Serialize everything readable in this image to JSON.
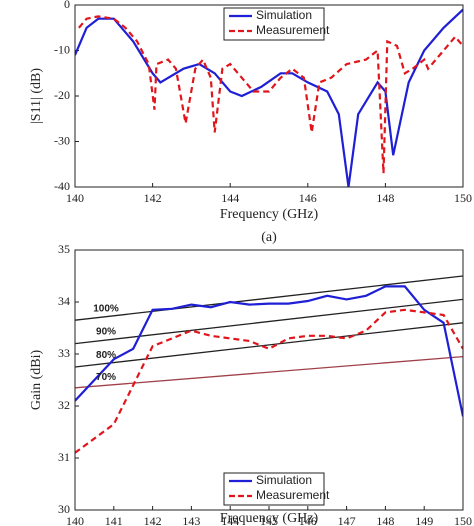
{
  "chart_data": [
    {
      "type": "line",
      "caption": "(a)",
      "xlabel": "Frequency (GHz)",
      "ylabel": "|S11| (dB)",
      "xlim": [
        140,
        150
      ],
      "xticks": [
        140,
        142,
        144,
        146,
        148,
        150
      ],
      "ylim": [
        -40,
        0
      ],
      "yticks": [
        -40,
        -30,
        -20,
        -10,
        0
      ],
      "legend": "upper center",
      "series": [
        {
          "name": "Simulation",
          "color": "#1f1fd6",
          "dash": false,
          "x": [
            140,
            140.3,
            140.6,
            141,
            141.5,
            142,
            142.2,
            142.8,
            143.2,
            143.6,
            144,
            144.3,
            144.8,
            145.3,
            145.6,
            146,
            146.5,
            146.8,
            147.05,
            147.3,
            147.8,
            148,
            148.2,
            148.6,
            149,
            149.5,
            150
          ],
          "values": [
            -11,
            -5,
            -3,
            -3,
            -8,
            -15,
            -17,
            -14,
            -13,
            -15,
            -19,
            -20,
            -18,
            -15,
            -15,
            -17,
            -19,
            -24,
            -40,
            -24,
            -17,
            -19,
            -33,
            -17,
            -10,
            -5,
            -1
          ]
        },
        {
          "name": "Measurement",
          "color": "#e0161c",
          "dash": true,
          "x": [
            140.1,
            140.3,
            140.6,
            141,
            141.3,
            141.6,
            141.9,
            142.05,
            142.1,
            142.4,
            142.6,
            142.85,
            143.1,
            143.3,
            143.5,
            143.6,
            143.8,
            144,
            144.3,
            144.6,
            145,
            145.3,
            145.6,
            145.9,
            146.1,
            146.3,
            146.6,
            147,
            147.5,
            147.8,
            147.95,
            148.05,
            148.3,
            148.5,
            148.7,
            149,
            149.1,
            149.4,
            149.6,
            149.8,
            150
          ],
          "values": [
            -5,
            -3,
            -2.5,
            -3,
            -5,
            -8,
            -13,
            -23,
            -13,
            -12,
            -14,
            -26,
            -14,
            -12,
            -16,
            -28,
            -14,
            -13,
            -16,
            -19,
            -19,
            -16,
            -14,
            -16,
            -28,
            -17,
            -16,
            -13,
            -12,
            -10,
            -37,
            -8,
            -9,
            -15,
            -14,
            -12,
            -14,
            -11,
            -9,
            -7,
            -9
          ]
        }
      ]
    },
    {
      "type": "line",
      "caption": "(b)",
      "xlabel": "Frequency (GHz)",
      "ylabel": "Gain (dBi)",
      "xlim": [
        140,
        150
      ],
      "xticks": [
        140,
        141,
        142,
        143,
        144,
        145,
        146,
        147,
        148,
        149,
        150
      ],
      "ylim": [
        30,
        35
      ],
      "yticks": [
        30,
        31,
        32,
        33,
        34,
        35
      ],
      "legend": "lower center",
      "reference_lines": [
        {
          "label": "100%",
          "color": "#222222",
          "x": [
            140,
            150
          ],
          "values": [
            33.65,
            34.5
          ]
        },
        {
          "label": "90%",
          "color": "#222222",
          "x": [
            140,
            150
          ],
          "values": [
            33.2,
            34.05
          ]
        },
        {
          "label": "80%",
          "color": "#222222",
          "x": [
            140,
            150
          ],
          "values": [
            32.75,
            33.6
          ]
        },
        {
          "label": "70%",
          "color": "#a0404a",
          "x": [
            140,
            150
          ],
          "values": [
            32.35,
            32.95
          ]
        }
      ],
      "series": [
        {
          "name": "Simulation",
          "color": "#1f1fd6",
          "dash": false,
          "x": [
            140,
            140.5,
            141,
            141.5,
            142,
            142.5,
            143,
            143.5,
            144,
            144.5,
            145,
            145.5,
            146,
            146.5,
            147,
            147.5,
            148,
            148.5,
            149,
            149.5,
            150
          ],
          "values": [
            32.1,
            32.5,
            32.9,
            33.1,
            33.85,
            33.87,
            33.95,
            33.9,
            34.0,
            33.95,
            33.97,
            33.97,
            34.02,
            34.12,
            34.05,
            34.12,
            34.3,
            34.3,
            33.85,
            33.6,
            31.8
          ]
        },
        {
          "name": "Measurement",
          "color": "#e0161c",
          "dash": true,
          "x": [
            140,
            141,
            141.5,
            142,
            142.5,
            143,
            143.5,
            144,
            144.5,
            145,
            145.5,
            146,
            146.5,
            147,
            147.5,
            148,
            148.5,
            149,
            149.5,
            150
          ],
          "values": [
            31.1,
            31.65,
            32.4,
            33.15,
            33.3,
            33.45,
            33.35,
            33.3,
            33.25,
            33.1,
            33.3,
            33.35,
            33.35,
            33.3,
            33.45,
            33.8,
            33.85,
            33.8,
            33.75,
            33.1
          ]
        }
      ]
    }
  ]
}
